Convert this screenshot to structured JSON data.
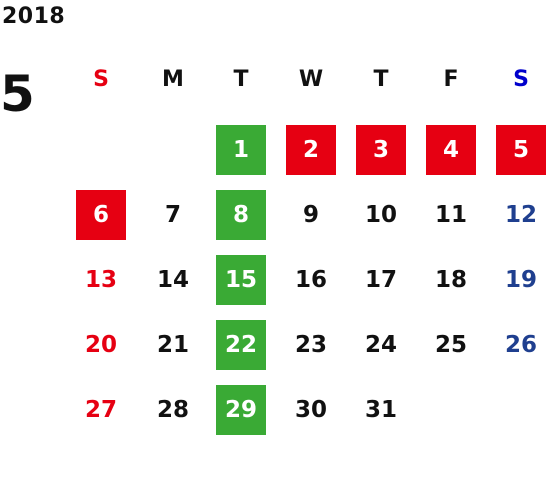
{
  "year": "2018",
  "month": "5",
  "colors": {
    "text": "#111111",
    "sunday": "#e60012",
    "saturday": "#0000cc",
    "saturday_date": "#1f3f8f",
    "holiday_bg": "#e60012",
    "tuesday_bg": "#3aaa35",
    "highlight_text": "#ffffff"
  },
  "weekdays": [
    {
      "label": "S",
      "type": "sunday"
    },
    {
      "label": "M",
      "type": "weekday"
    },
    {
      "label": "T",
      "type": "weekday"
    },
    {
      "label": "W",
      "type": "weekday"
    },
    {
      "label": "T",
      "type": "weekday"
    },
    {
      "label": "F",
      "type": "weekday"
    },
    {
      "label": "S",
      "type": "saturday"
    }
  ],
  "first_weekday_index": 2,
  "days": [
    {
      "n": "1",
      "style": "green"
    },
    {
      "n": "2",
      "style": "red"
    },
    {
      "n": "3",
      "style": "red"
    },
    {
      "n": "4",
      "style": "red"
    },
    {
      "n": "5",
      "style": "red"
    },
    {
      "n": "6",
      "style": "red"
    },
    {
      "n": "7",
      "style": "normal"
    },
    {
      "n": "8",
      "style": "green"
    },
    {
      "n": "9",
      "style": "normal"
    },
    {
      "n": "10",
      "style": "normal"
    },
    {
      "n": "11",
      "style": "normal"
    },
    {
      "n": "12",
      "style": "saturday"
    },
    {
      "n": "13",
      "style": "sunday"
    },
    {
      "n": "14",
      "style": "normal"
    },
    {
      "n": "15",
      "style": "green"
    },
    {
      "n": "16",
      "style": "normal"
    },
    {
      "n": "17",
      "style": "normal"
    },
    {
      "n": "18",
      "style": "normal"
    },
    {
      "n": "19",
      "style": "saturday"
    },
    {
      "n": "20",
      "style": "sunday"
    },
    {
      "n": "21",
      "style": "normal"
    },
    {
      "n": "22",
      "style": "green"
    },
    {
      "n": "23",
      "style": "normal"
    },
    {
      "n": "24",
      "style": "normal"
    },
    {
      "n": "25",
      "style": "normal"
    },
    {
      "n": "26",
      "style": "saturday"
    },
    {
      "n": "27",
      "style": "sunday"
    },
    {
      "n": "28",
      "style": "normal"
    },
    {
      "n": "29",
      "style": "green"
    },
    {
      "n": "30",
      "style": "normal"
    },
    {
      "n": "31",
      "style": "normal"
    }
  ]
}
